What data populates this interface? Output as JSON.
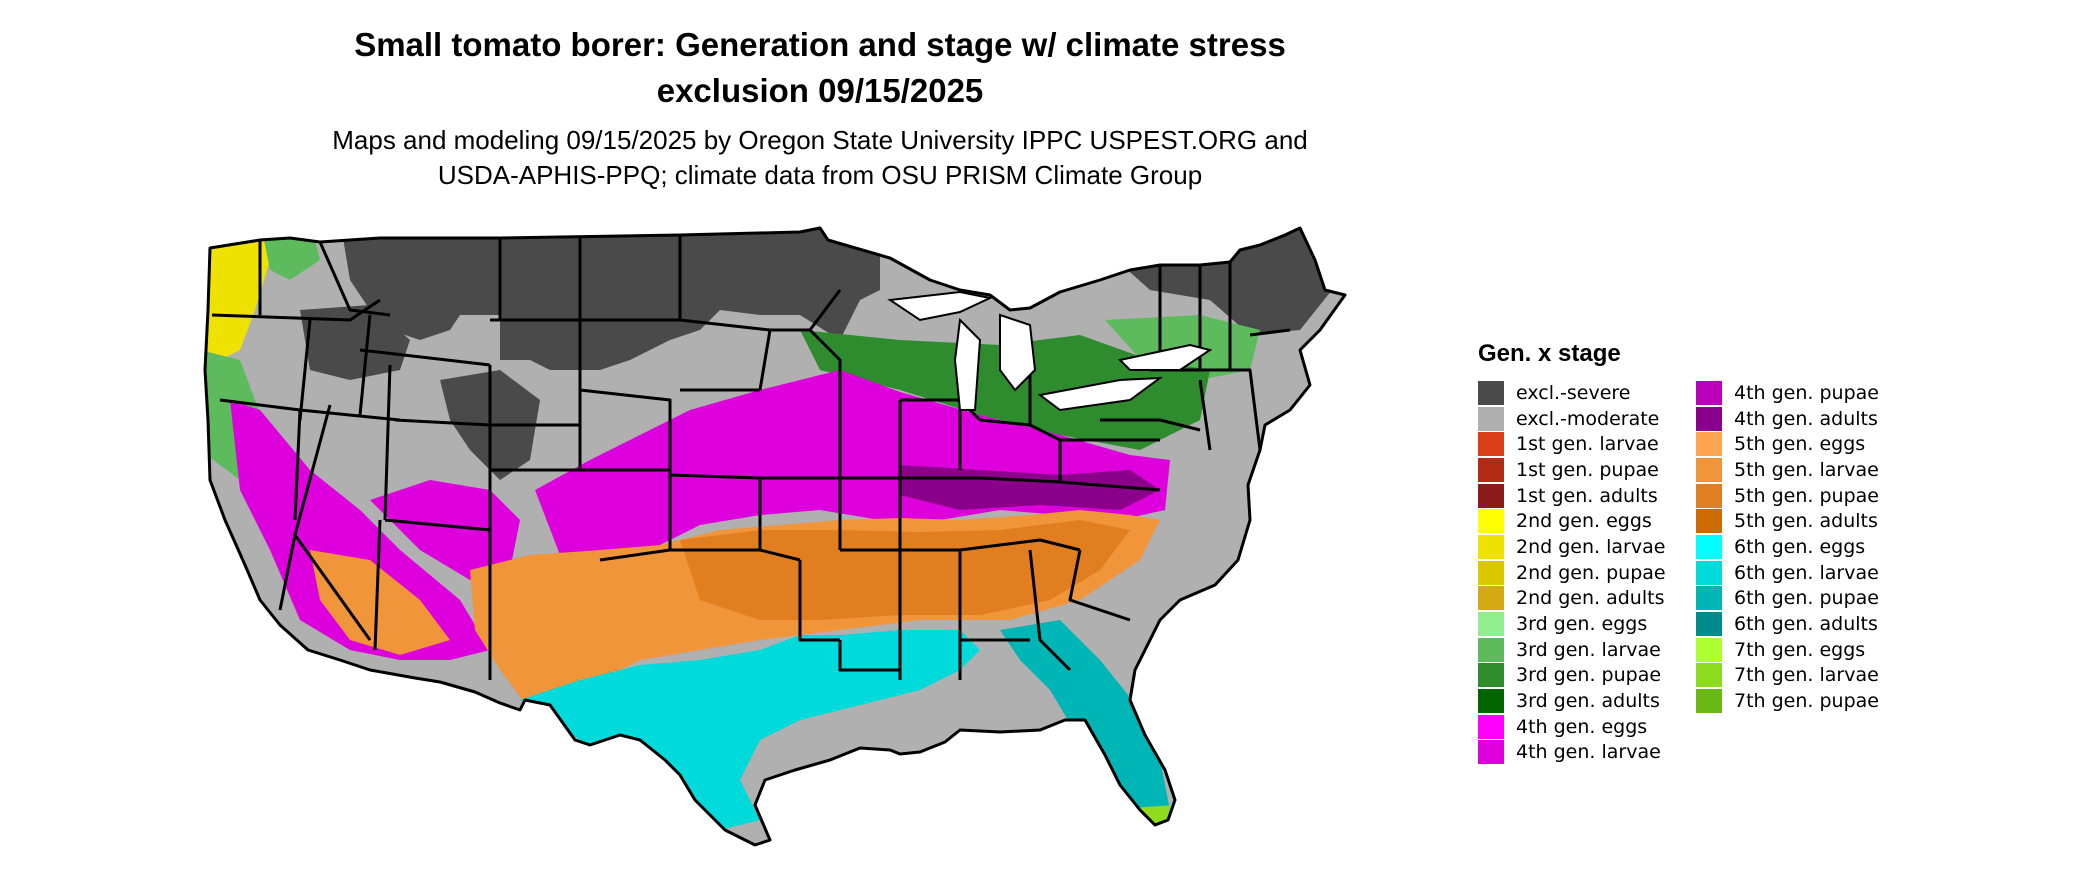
{
  "title_lines": [
    "Small tomato borer: Generation and stage w/ climate stress",
    "exclusion 09/15/2025"
  ],
  "subtitle_lines": [
    "Maps and modeling 09/15/2025 by Oregon State University IPPC USPEST.ORG and",
    "USDA-APHIS-PPQ; climate data from OSU PRISM Climate Group"
  ],
  "legend": {
    "title": "Gen. x stage",
    "items": [
      {
        "label": "excl.-severe",
        "color": "#4a4a4a"
      },
      {
        "label": "excl.-moderate",
        "color": "#b0b0b0"
      },
      {
        "label": "1st gen. larvae",
        "color": "#d9401a"
      },
      {
        "label": "1st gen. pupae",
        "color": "#b32a17"
      },
      {
        "label": "1st gen. adults",
        "color": "#8b1a1a"
      },
      {
        "label": "2nd gen. eggs",
        "color": "#ffff00"
      },
      {
        "label": "2nd gen. larvae",
        "color": "#efe200"
      },
      {
        "label": "2nd gen. pupae",
        "color": "#dcc800"
      },
      {
        "label": "2nd gen. adults",
        "color": "#d4aa14"
      },
      {
        "label": "3rd gen. eggs",
        "color": "#90ee90"
      },
      {
        "label": "3rd gen. larvae",
        "color": "#5dbb5d"
      },
      {
        "label": "3rd gen. pupae",
        "color": "#2e8b2e"
      },
      {
        "label": "3rd gen. adults",
        "color": "#006400"
      },
      {
        "label": "4th gen. eggs",
        "color": "#ff00ff"
      },
      {
        "label": "4th gen. larvae",
        "color": "#dd00dd"
      },
      {
        "label": "4th gen. pupae",
        "color": "#bb00bb"
      },
      {
        "label": "4th gen. adults",
        "color": "#8b008b"
      },
      {
        "label": "5th gen. eggs",
        "color": "#ffa54f"
      },
      {
        "label": "5th gen. larvae",
        "color": "#f0953a"
      },
      {
        "label": "5th gen. pupae",
        "color": "#e07e20"
      },
      {
        "label": "5th gen. adults",
        "color": "#cd6b00"
      },
      {
        "label": "6th gen. eggs",
        "color": "#00ffff"
      },
      {
        "label": "6th gen. larvae",
        "color": "#00dada"
      },
      {
        "label": "6th gen. pupae",
        "color": "#00b5b5"
      },
      {
        "label": "6th gen. adults",
        "color": "#008b8b"
      },
      {
        "label": "7th gen. eggs",
        "color": "#adff2f"
      },
      {
        "label": "7th gen. larvae",
        "color": "#8fdc1e"
      },
      {
        "label": "7th gen. pupae",
        "color": "#6ab814"
      }
    ]
  },
  "map_regions": [
    {
      "stage": "excl.-severe",
      "color": "#4a4a4a"
    },
    {
      "stage": "excl.-moderate",
      "color": "#b0b0b0"
    },
    {
      "stage": "2nd gen. larvae",
      "color": "#efe200"
    },
    {
      "stage": "3rd gen. larvae",
      "color": "#5dbb5d"
    },
    {
      "stage": "3rd gen. pupae",
      "color": "#2e8b2e"
    },
    {
      "stage": "4th gen. larvae",
      "color": "#dd00dd"
    },
    {
      "stage": "4th gen. adults",
      "color": "#8b008b"
    },
    {
      "stage": "5th gen. larvae",
      "color": "#f0953a"
    },
    {
      "stage": "5th gen. pupae",
      "color": "#e07e20"
    },
    {
      "stage": "6th gen. larvae",
      "color": "#00dada"
    },
    {
      "stage": "6th gen. pupae",
      "color": "#00b5b5"
    },
    {
      "stage": "7th gen. larvae",
      "color": "#8fdc1e"
    }
  ]
}
